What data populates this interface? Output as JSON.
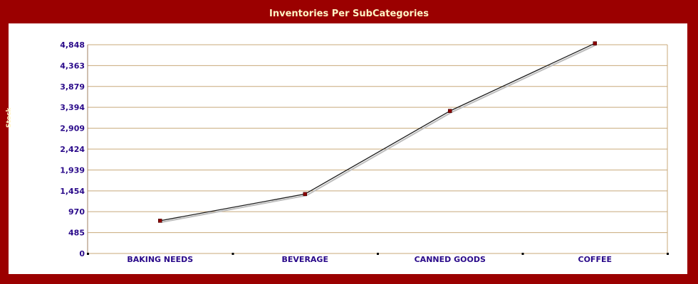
{
  "chart_data": {
    "type": "line",
    "title": "Inventories Per SubCategories",
    "ylabel": "Stock",
    "xlabel": "",
    "categories": [
      "BAKING NEEDS",
      "BEVERAGE",
      "CANNED GOODS",
      "COFFEE"
    ],
    "series": [
      {
        "values": [
          760,
          1380,
          3310,
          4880
        ]
      }
    ],
    "ylim": [
      0,
      4848
    ],
    "yticks": [
      0,
      485,
      970,
      1454,
      1939,
      2424,
      2909,
      3394,
      3879,
      4363,
      4848
    ],
    "ytick_labels": [
      "0",
      "485",
      "970",
      "1,454",
      "1,939",
      "2,424",
      "2,909",
      "3,394",
      "3,879",
      "4,363",
      "4,848"
    ],
    "grid": true,
    "legend": "none"
  },
  "colors": {
    "frame": "#9b0000",
    "panel": "#ffffff",
    "gridline": "#c8a97a",
    "line": "#1a1a1a",
    "shadow": "#bdbdbd",
    "marker": "#8b0000",
    "tick_text": "#2a0a8a",
    "title_text": "#fff3c4"
  }
}
